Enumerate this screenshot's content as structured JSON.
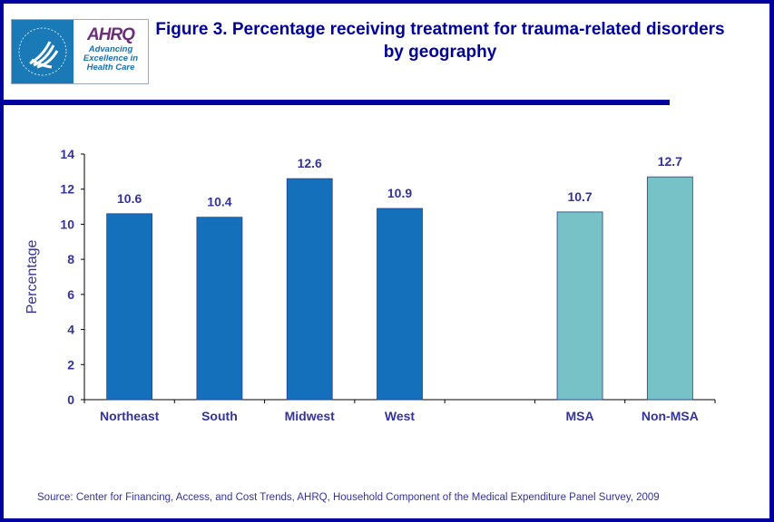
{
  "title": "Figure 3. Percentage receiving treatment for trauma-related disorders by geography",
  "logo": {
    "agency": "AHRQ",
    "tagline": "Advancing Excellence in Health Care",
    "seal_text": "Department of Health & Human Services USA"
  },
  "source": "Source: Center for Financing, Access, and Cost Trends, AHRQ, Household Component of the Medical Expenditure Panel Survey,  2009",
  "colors": {
    "region_bar": "#1570BC",
    "msa_bar": "#76C2C6",
    "text": "#333399",
    "frame": "#0000A0"
  },
  "chart_data": {
    "type": "bar",
    "title": "Figure 3. Percentage receiving treatment for trauma-related disorders by geography",
    "xlabel": "",
    "ylabel": "Percentage",
    "ylim": [
      0,
      14
    ],
    "yticks": [
      0,
      2,
      4,
      6,
      8,
      10,
      12,
      14
    ],
    "grid": false,
    "categories": [
      "Northeast",
      "South",
      "Midwest",
      "West",
      "",
      "MSA",
      "Non-MSA"
    ],
    "values": [
      10.6,
      10.4,
      12.6,
      10.9,
      null,
      10.7,
      12.7
    ],
    "data_labels": [
      "10.6",
      "10.4",
      "12.6",
      "10.9",
      "",
      "10.7",
      "12.7"
    ],
    "bar_colors": [
      "#1570BC",
      "#1570BC",
      "#1570BC",
      "#1570BC",
      null,
      "#76C2C6",
      "#76C2C6"
    ]
  }
}
